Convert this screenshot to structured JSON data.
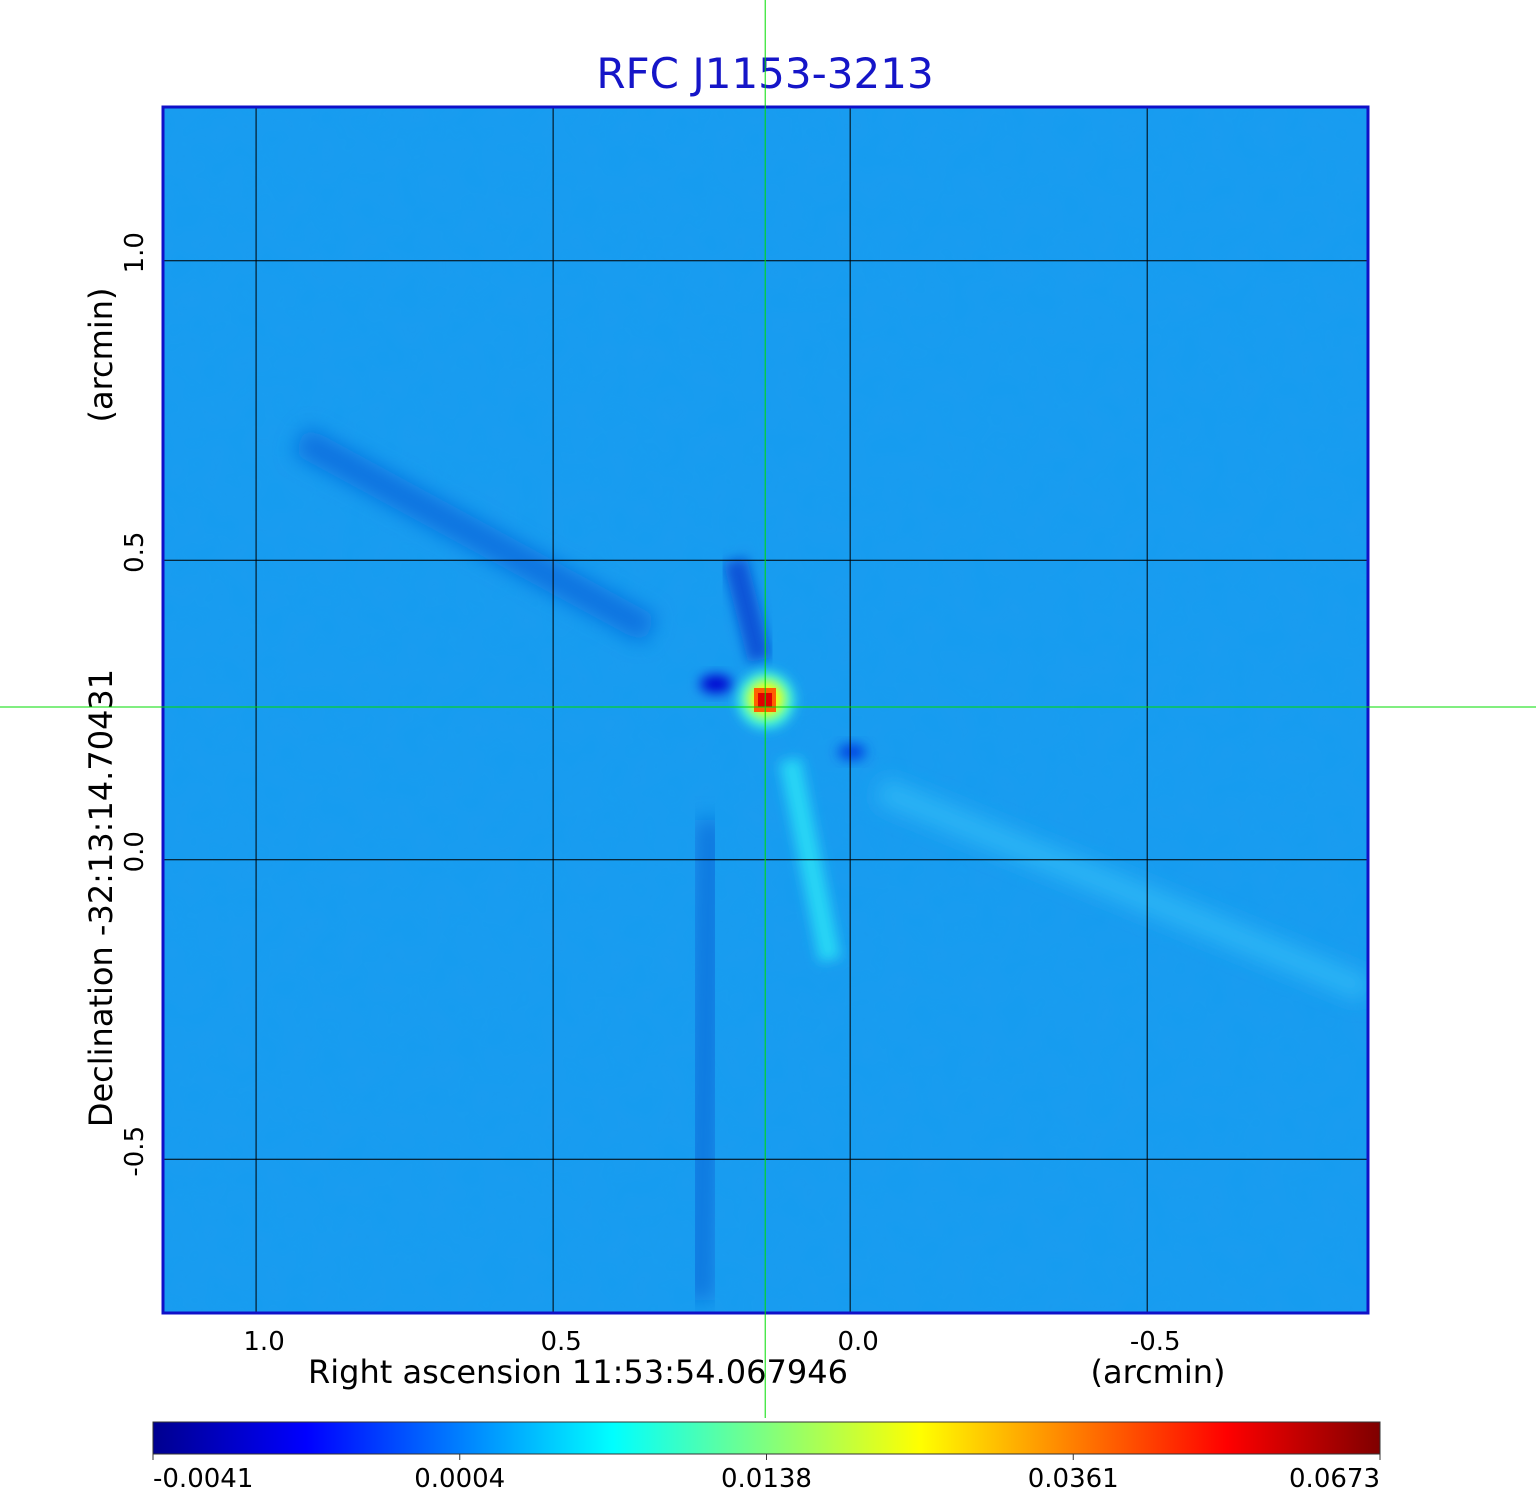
{
  "chart_data": {
    "type": "heatmap",
    "title": "RFC J1153-3213",
    "xlabel": "Right ascension  11:53:54.067946",
    "xunit": "(arcmin)",
    "ylabel": "Declination  -32:13:14.70431",
    "yunit": "(arcmin)",
    "x_ticks": [
      1.0,
      0.5,
      0.0,
      -0.5
    ],
    "y_ticks": [
      1.0,
      0.5,
      0.0,
      -0.5
    ],
    "xlim": [
      1.155,
      -0.87
    ],
    "ylim": [
      -0.755,
      1.255
    ],
    "grid": true,
    "crosshair": {
      "x": 0.143,
      "y": 0.255,
      "color": "#00dd00"
    },
    "peak": {
      "x": 0.143,
      "y": 0.255,
      "value": 0.0673
    },
    "colorbar": {
      "ticks": [
        "-0.0041",
        "0.0004",
        "0.0138",
        "0.0361",
        "0.0673"
      ],
      "colormap": [
        "#00008f",
        "#0000ff",
        "#007fff",
        "#00ffff",
        "#7fff7f",
        "#ffff00",
        "#ff7f00",
        "#ff0000",
        "#7f0000"
      ]
    },
    "colors": {
      "frame": "#1010c8",
      "title": "#1515c8",
      "background_field": "#1a9cf0",
      "grid": "#000000"
    }
  }
}
